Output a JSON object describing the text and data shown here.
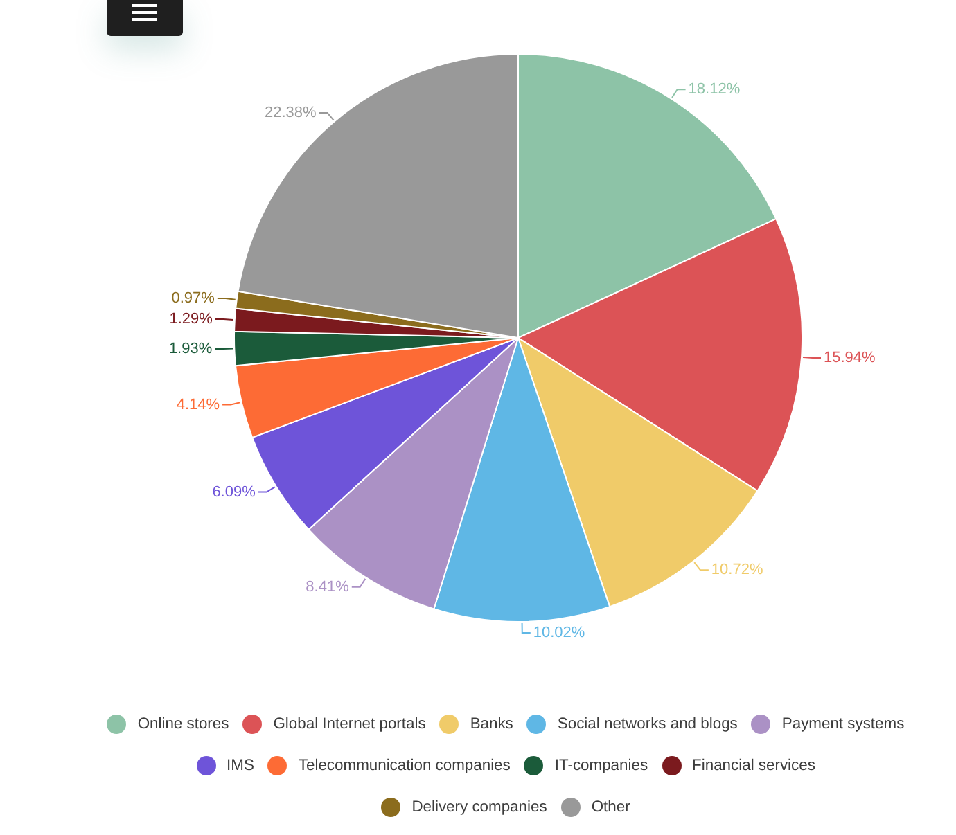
{
  "chart_data": {
    "type": "pie",
    "categories": [
      "Online stores",
      "Global Internet portals",
      "Banks",
      "Social networks and blogs",
      "Payment systems",
      "IMS",
      "Telecommunication companies",
      "IT-companies",
      "Financial services",
      "Delivery companies",
      "Other"
    ],
    "values": [
      18.12,
      15.94,
      10.72,
      10.02,
      8.41,
      6.09,
      4.14,
      1.93,
      1.29,
      0.97,
      22.38
    ],
    "colors": [
      "#8dc3a7",
      "#dc5356",
      "#f0cb69",
      "#5fb7e5",
      "#ab91c5",
      "#6e54d9",
      "#fd6b35",
      "#1b5b3a",
      "#7b1a1e",
      "#8b6c1d",
      "#999999"
    ],
    "value_labels": [
      "18.12%",
      "15.94%",
      "10.72%",
      "10.02%",
      "8.41%",
      "6.09%",
      "4.14%",
      "1.93%",
      "1.29%",
      "0.97%",
      "22.38%"
    ],
    "legend": "bottom"
  }
}
